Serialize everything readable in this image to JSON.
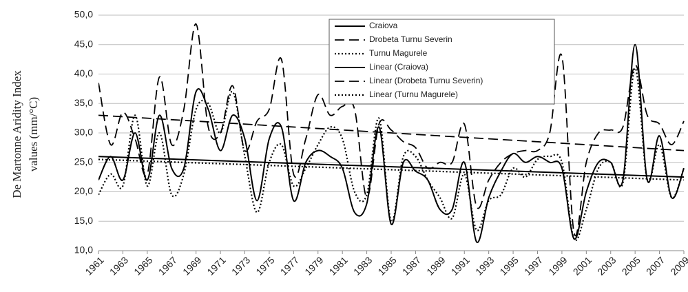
{
  "chart_data": {
    "type": "line",
    "ylabel": [
      "De Martonne Aridity Index",
      "values (mm/°C)"
    ],
    "x": [
      1961,
      1962,
      1963,
      1964,
      1965,
      1966,
      1967,
      1968,
      1969,
      1970,
      1971,
      1972,
      1973,
      1974,
      1975,
      1976,
      1977,
      1978,
      1979,
      1980,
      1981,
      1982,
      1983,
      1984,
      1985,
      1986,
      1987,
      1988,
      1989,
      1990,
      1991,
      1992,
      1993,
      1994,
      1995,
      1996,
      1997,
      1998,
      1999,
      2000,
      2001,
      2002,
      2003,
      2004,
      2005,
      2006,
      2007,
      2008,
      2009
    ],
    "xlim": [
      1961,
      2009
    ],
    "xticks": [
      1961,
      1963,
      1965,
      1967,
      1969,
      1971,
      1973,
      1975,
      1977,
      1979,
      1981,
      1983,
      1985,
      1987,
      1989,
      1991,
      1993,
      1995,
      1997,
      1999,
      2001,
      2003,
      2005,
      2007,
      2009
    ],
    "ylim": [
      10,
      50
    ],
    "yticks": [
      {
        "value": 10,
        "label": "10,0"
      },
      {
        "value": 15,
        "label": "15,0"
      },
      {
        "value": 20,
        "label": "20,0"
      },
      {
        "value": 25,
        "label": "25,0"
      },
      {
        "value": 30,
        "label": "30,0"
      },
      {
        "value": 35,
        "label": "35,0"
      },
      {
        "value": 40,
        "label": "40,0"
      },
      {
        "value": 45,
        "label": "45,0"
      },
      {
        "value": 50,
        "label": "50,0"
      }
    ],
    "grid": true,
    "legend": "top",
    "series": [
      {
        "name": "Craiova",
        "color": "#000000",
        "dash": "solid",
        "smooth": true,
        "values": [
          22,
          26,
          22,
          30,
          22,
          33,
          24,
          24,
          37,
          34,
          27,
          33,
          29,
          18.5,
          29,
          31,
          18.5,
          25,
          27,
          26,
          24,
          16.5,
          18,
          31,
          14.5,
          25,
          23.5,
          22,
          17,
          17,
          25,
          11.5,
          19,
          23.5,
          26.5,
          25,
          26,
          25,
          24,
          12,
          20,
          25,
          25,
          22,
          45,
          22,
          29.5,
          19,
          24
        ]
      },
      {
        "name": "Drobeta Turnu Severin",
        "color": "#000000",
        "dash": "dashed",
        "smooth": true,
        "values": [
          38.5,
          28,
          33.5,
          29,
          23,
          39.5,
          28,
          34,
          48.5,
          31,
          30,
          38,
          27,
          32,
          34,
          42.5,
          23,
          29,
          36.5,
          33,
          34.5,
          34,
          19,
          31.5,
          30.5,
          28.5,
          27.5,
          24,
          25,
          25,
          31.5,
          17.5,
          22,
          25,
          26.5,
          27,
          27,
          30,
          43,
          13,
          25,
          30,
          30.5,
          31,
          41.5,
          33,
          31.5,
          28,
          32
        ]
      },
      {
        "name": "Turnu Magurele",
        "color": "#000000",
        "dash": "dotted",
        "smooth": true,
        "values": [
          19.5,
          23,
          21,
          33,
          21,
          30,
          19.5,
          23,
          34,
          35,
          30,
          37,
          26,
          16.5,
          25,
          28,
          21,
          24,
          28,
          31,
          29,
          20,
          19.5,
          32.5,
          15,
          26,
          26,
          22,
          19,
          15.5,
          23,
          13.5,
          18.5,
          19.5,
          24,
          22.5,
          25.5,
          26,
          25,
          12,
          17,
          24,
          25,
          21.5,
          41,
          22,
          28,
          19,
          24
        ]
      },
      {
        "name": "Linear (Craiova)",
        "color": "#000000",
        "dash": "solid",
        "smooth": false,
        "x": [
          1961,
          2009
        ],
        "values": [
          26,
          22.5
        ]
      },
      {
        "name": "Linear (Drobeta Turnu Severin)",
        "color": "#000000",
        "dash": "dashed",
        "smooth": false,
        "x": [
          1961,
          2009
        ],
        "values": [
          33,
          27
        ]
      },
      {
        "name": "Linear (Turnu Magurele)",
        "color": "#000000",
        "dash": "dotted",
        "smooth": false,
        "x": [
          1961,
          2009
        ],
        "values": [
          25.5,
          22
        ]
      }
    ]
  }
}
